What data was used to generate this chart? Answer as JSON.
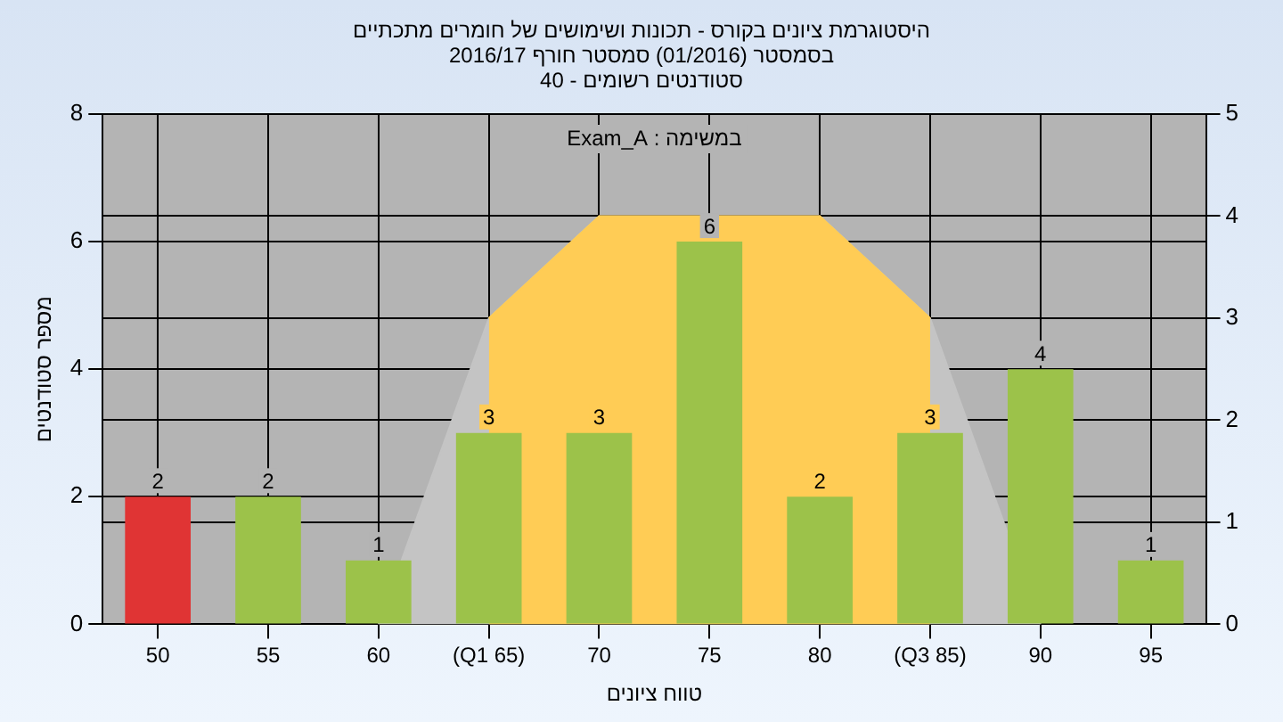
{
  "chart_data": {
    "type": "bar",
    "title": "היסטוגרמת ציונים בקורס - תכונות ושימושים של חומרים מתכתיים",
    "subtitle": "בסמסטר  (01/2016)  סמסטר חורף 2016/17\nסטודנטים רשומים - 40",
    "xlabel": "טווח ציונים",
    "ylabel": "מספר סטודנטים",
    "annotations": [
      "במשימה : Exam_A"
    ],
    "categories": [
      "50",
      "55",
      "60",
      "(Q1 65)",
      "70",
      "75",
      "80",
      "(Q3 85)",
      "90",
      "95"
    ],
    "series": [
      {
        "value_labels": [
          "2",
          "2",
          "1",
          "3",
          "3",
          "6",
          "2",
          "3",
          "4",
          "1"
        ],
        "colors": [
          "#e03434",
          "#9cc24a",
          "#9cc24a",
          "#9cc24a",
          "#9cc24a",
          "#9cc24a",
          "#9cc24a",
          "#9cc24a",
          "#9cc24a",
          "#9cc24a"
        ],
        "values": [
          2,
          2,
          1,
          3,
          3,
          6,
          2,
          3,
          4,
          1
        ]
      },
      {
        "type": "area",
        "axis": "y2",
        "color": "#ffcc55",
        "values": [
          null,
          null,
          null,
          3,
          4,
          4,
          4,
          3,
          null,
          null
        ]
      },
      {
        "type": "area",
        "axis": "y2",
        "color": "#c4c4c4",
        "values": [
          null,
          null,
          0,
          3,
          4,
          4,
          4,
          3,
          0,
          null
        ]
      }
    ],
    "ylim": [
      0,
      8
    ],
    "yticks": [
      0,
      2,
      4,
      6,
      8
    ],
    "y2lim": [
      0,
      5
    ],
    "y2ticks": [
      0,
      1,
      2,
      3,
      4,
      5
    ],
    "grid": true,
    "legend": false
  }
}
